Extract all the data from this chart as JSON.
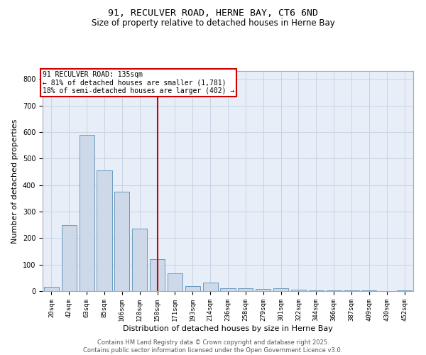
{
  "title_line1": "91, RECULVER ROAD, HERNE BAY, CT6 6ND",
  "title_line2": "Size of property relative to detached houses in Herne Bay",
  "xlabel": "Distribution of detached houses by size in Herne Bay",
  "ylabel": "Number of detached properties",
  "categories": [
    "20sqm",
    "42sqm",
    "63sqm",
    "85sqm",
    "106sqm",
    "128sqm",
    "150sqm",
    "171sqm",
    "193sqm",
    "214sqm",
    "236sqm",
    "258sqm",
    "279sqm",
    "301sqm",
    "322sqm",
    "344sqm",
    "366sqm",
    "387sqm",
    "409sqm",
    "430sqm",
    "452sqm"
  ],
  "values": [
    15,
    250,
    590,
    455,
    375,
    235,
    120,
    68,
    20,
    32,
    10,
    12,
    8,
    10,
    5,
    3,
    3,
    3,
    2,
    0,
    3
  ],
  "bar_color": "#cdd8e8",
  "bar_edge_color": "#6a9abf",
  "red_line_x": 6.0,
  "red_line_color": "#cc0000",
  "annotation_text": "91 RECULVER ROAD: 135sqm\n← 81% of detached houses are smaller (1,781)\n18% of semi-detached houses are larger (402) →",
  "annotation_box_color": "#cc0000",
  "ylim": [
    0,
    830
  ],
  "yticks": [
    0,
    100,
    200,
    300,
    400,
    500,
    600,
    700,
    800
  ],
  "grid_color": "#c8d4e4",
  "background_color": "#e8eef8",
  "footer_line1": "Contains HM Land Registry data © Crown copyright and database right 2025.",
  "footer_line2": "Contains public sector information licensed under the Open Government Licence v3.0.",
  "title_fontsize": 9.5,
  "subtitle_fontsize": 8.5,
  "axis_label_fontsize": 8,
  "tick_fontsize": 6.5,
  "annotation_fontsize": 7,
  "footer_fontsize": 6
}
